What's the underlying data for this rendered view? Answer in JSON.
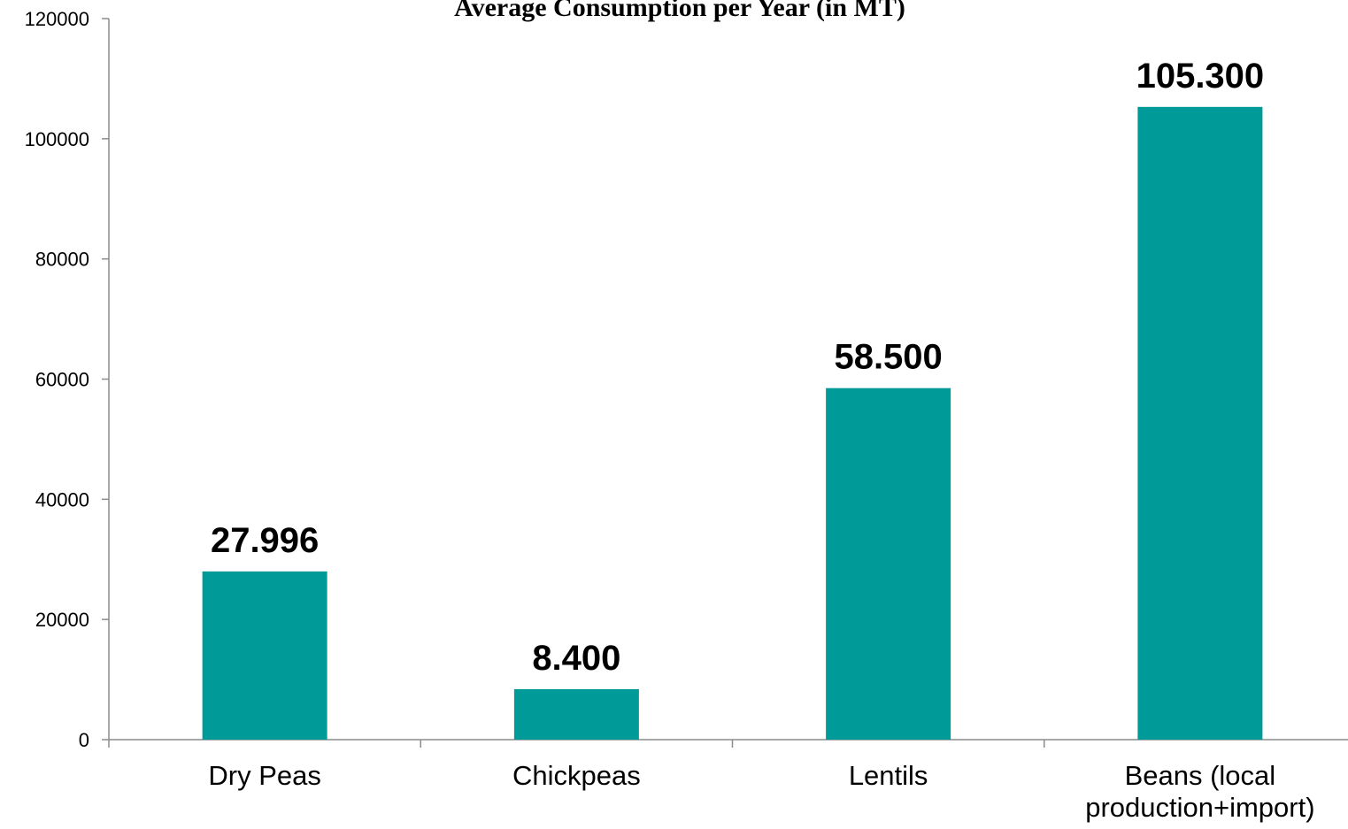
{
  "chart_data": {
    "type": "bar",
    "title": "Average Consumption per Year (in MT)",
    "categories": [
      "Dry Peas",
      "Chickpeas",
      "Lentils",
      "Beans (local production+import)"
    ],
    "category_lines": [
      [
        "Dry Peas"
      ],
      [
        "Chickpeas"
      ],
      [
        "Lentils"
      ],
      [
        "Beans (local",
        "production+import)"
      ]
    ],
    "values": [
      27996,
      8400,
      58500,
      105300
    ],
    "data_labels": [
      "27.996",
      "8.400",
      "58.500",
      "105.300"
    ],
    "ylim": [
      0,
      120000
    ],
    "yticks": [
      "0",
      "20000",
      "40000",
      "60000",
      "80000",
      "100000",
      "120000"
    ],
    "xlabel": "",
    "ylabel": "",
    "grid": false,
    "legend": "none",
    "bar_color": "#009b98"
  }
}
